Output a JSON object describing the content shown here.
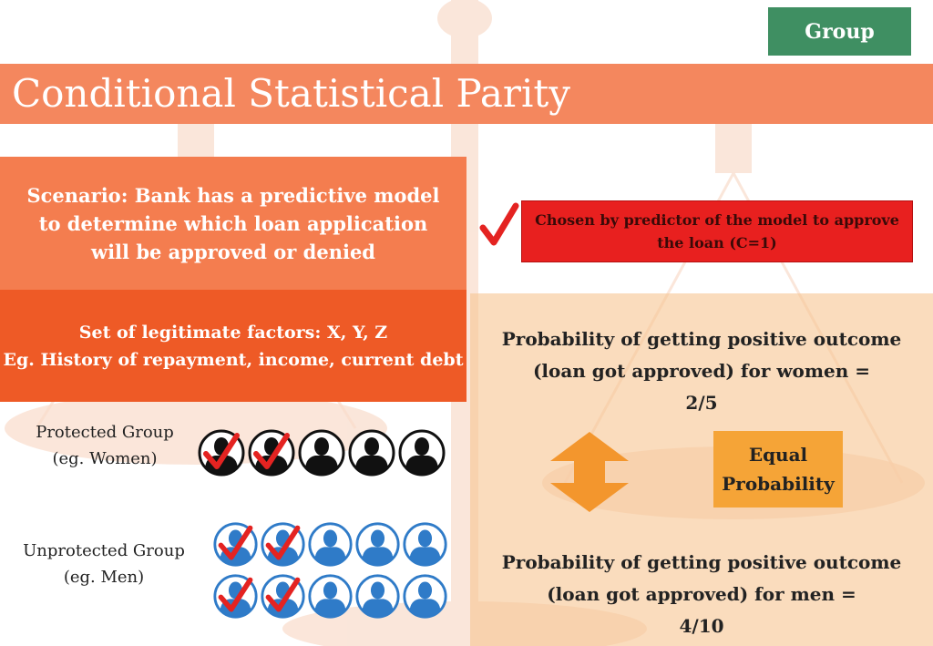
{
  "badge": {
    "label": "Group"
  },
  "title": "Conditional Statistical Parity",
  "scenario": {
    "lines": [
      "Scenario: Bank has a predictive model",
      "to determine which loan application",
      "will be approved or denied"
    ]
  },
  "factors": {
    "lines": [
      "Set of legitimate factors: X, Y, Z",
      "Eg. History of repayment, income, current debt"
    ]
  },
  "legend": {
    "lines": [
      "Chosen by predictor of the model to approve",
      "the loan (C=1)"
    ]
  },
  "protected_group": {
    "lines": [
      "Protected Group",
      "(eg. Women)"
    ],
    "total": 5,
    "approved": 2
  },
  "unprotected_group": {
    "lines": [
      "Unprotected Group",
      "(eg. Men)"
    ],
    "total": 10,
    "approved": 4
  },
  "probability_women": {
    "lines": [
      "Probability of getting positive outcome",
      "(loan got approved) for women =",
      "2/5"
    ]
  },
  "equal": {
    "lines": [
      "Equal",
      "Probability"
    ]
  },
  "probability_men": {
    "lines": [
      "Probability of getting positive outcome",
      "(loan got approved) for men =",
      "4/10"
    ]
  },
  "colors": {
    "title_band": "#f4875e",
    "scenario": "#f47d4f",
    "factors": "#ee5a26",
    "legend_box": "#e8201f",
    "badge": "#3f8f62",
    "equal_box": "#f5a437",
    "check": "#e42321",
    "women_icon": "#111111",
    "men_icon": "#2f7bc8"
  },
  "icons": {
    "women": "person-silhouette-black",
    "men": "person-silhouette-blue",
    "approved": "red-checkmark",
    "arrow": "double-headed-vertical-arrow"
  }
}
